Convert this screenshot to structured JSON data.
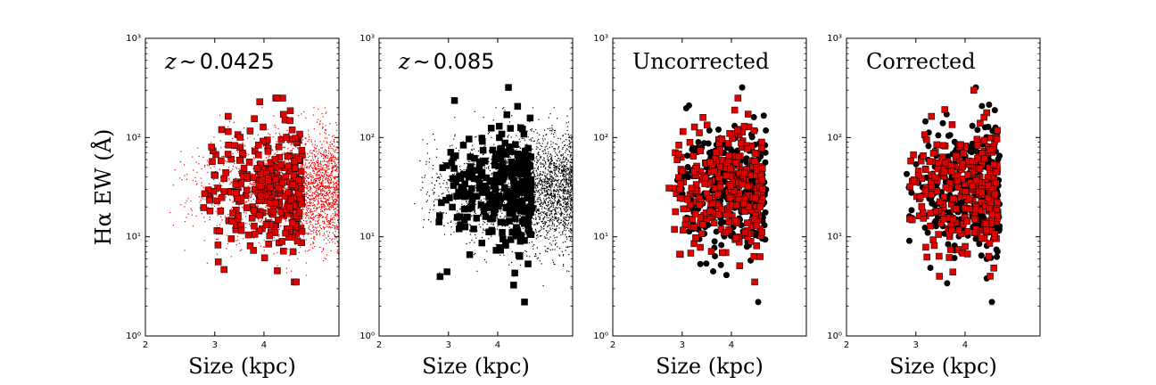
{
  "chart_data": {
    "type": "scatter",
    "xlabel": "Size (kpc)",
    "ylabel": "Hα EW (Å)",
    "xscale": "log",
    "yscale": "log",
    "xlim": [
      2,
      6.2
    ],
    "ylim": [
      1,
      1000
    ],
    "xticks": [
      "2",
      "3",
      "4"
    ],
    "yticks": [
      "10⁰",
      "10¹",
      "10²",
      "10³"
    ],
    "panels": [
      {
        "annotation_var": "z",
        "annotation_op": "∼",
        "annotation_val": "0.0425",
        "series": [
          {
            "role": "background",
            "marker": "dot",
            "color": "#ff0000",
            "count": 2500,
            "x_range": [
              2.1,
              6.2
            ],
            "y_range": [
              2.5,
              200
            ]
          },
          {
            "role": "sample",
            "marker": "square",
            "color": "#e00000",
            "count": 300,
            "x_range": [
              2.7,
              5.0
            ],
            "y_range": [
              3.5,
              250
            ]
          }
        ]
      },
      {
        "annotation_var": "z",
        "annotation_op": "∼",
        "annotation_val": "0.085",
        "series": [
          {
            "role": "background",
            "marker": "dot",
            "color": "#000000",
            "count": 2500,
            "x_range": [
              2.2,
              6.2
            ],
            "y_range": [
              3,
              200
            ]
          },
          {
            "role": "sample",
            "marker": "square",
            "color": "#000000",
            "count": 300,
            "x_range": [
              2.8,
              4.9
            ],
            "y_range": [
              2.2,
              320
            ]
          }
        ]
      },
      {
        "annotation": "Uncorrected",
        "series": [
          {
            "role": "high-z",
            "marker": "circle",
            "color": "#000000",
            "count": 300,
            "x_range": [
              2.8,
              4.9
            ],
            "y_range": [
              2.2,
              320
            ]
          },
          {
            "role": "low-z",
            "marker": "square",
            "color": "#e00000",
            "count": 300,
            "x_range": [
              2.7,
              4.8
            ],
            "y_range": [
              3.5,
              250
            ]
          }
        ]
      },
      {
        "annotation": "Corrected",
        "series": [
          {
            "role": "high-z",
            "marker": "circle",
            "color": "#000000",
            "count": 300,
            "x_range": [
              2.8,
              4.9
            ],
            "y_range": [
              2.2,
              320
            ]
          },
          {
            "role": "low-z-corrected",
            "marker": "square",
            "color": "#e00000",
            "count": 300,
            "x_range": [
              2.75,
              4.85
            ],
            "y_range": [
              4,
              300
            ]
          }
        ]
      }
    ]
  }
}
